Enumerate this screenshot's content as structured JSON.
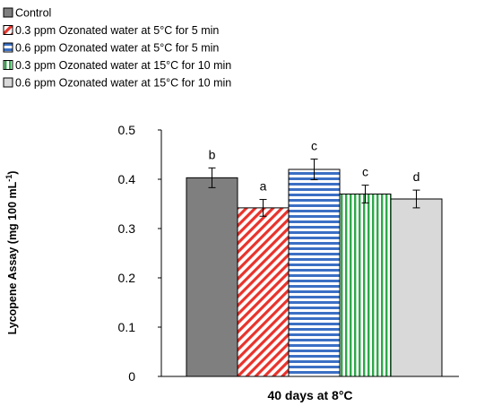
{
  "chart_data": {
    "type": "bar",
    "categories": [
      "40 days at 8°C"
    ],
    "xlabel": "40 days at 8°C",
    "ylabel": "Lycopene Assay (mg 100 mL",
    "ylabel_sup": "-1",
    "ylabel_close": ")",
    "ylim": [
      0,
      0.5
    ],
    "yticks": [
      0,
      0.1,
      0.2,
      0.3,
      0.4,
      0.5
    ],
    "ytick_labels": [
      "0",
      "0.1",
      "0.2",
      "0.3",
      "0.4",
      "0.5"
    ],
    "grid": false,
    "legend_position": "top-left",
    "series": [
      {
        "name": "Control",
        "value": 0.403,
        "error": 0.02,
        "label": "b",
        "fill": "#7f7f7f",
        "pattern": "solid"
      },
      {
        "name": "0.3 ppm Ozonated water at 5°C for 5 min",
        "value": 0.342,
        "error": 0.017,
        "label": "a",
        "fill": "#e8332c",
        "pattern": "diagonal"
      },
      {
        "name": "0.6 ppm Ozonated water at 5°C for 5 min",
        "value": 0.42,
        "error": 0.021,
        "label": "c",
        "fill": "#3b6fc4",
        "pattern": "horizontal"
      },
      {
        "name": "0.3 ppm Ozonated water at 15°C for 10 min",
        "value": 0.37,
        "error": 0.018,
        "label": "c",
        "fill": "#2ea84a",
        "pattern": "vertical"
      },
      {
        "name": "0.6 ppm Ozonated water at 15°C for 10 min",
        "value": 0.36,
        "error": 0.018,
        "label": "d",
        "fill": "#d9d9d9",
        "pattern": "solid"
      }
    ]
  }
}
